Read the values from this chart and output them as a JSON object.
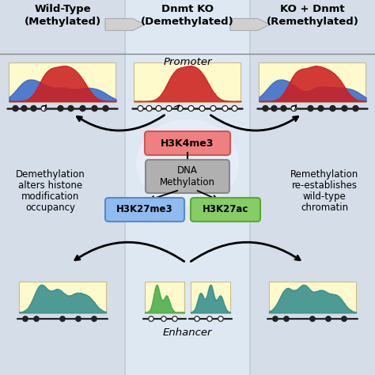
{
  "title_col1": "Wild-Type\n(Methylated)",
  "title_col2": "Dnmt KO\n(Demethylated)",
  "title_col3": "KO + Dnmt\n(Remethylated)",
  "promoter_label": "Promoter",
  "enhancer_label": "Enhancer",
  "left_text_lines": [
    "Demethylation",
    "alters histone",
    "modification",
    "occupancy"
  ],
  "right_text_lines": [
    "Remethylation",
    "re-establishes",
    "wild-type",
    "chromatin"
  ],
  "box1_label": "H3K4me3",
  "box2_label": "DNA\nMethylation",
  "box3_label": "H3K27me3",
  "box4_label": "H3K27ac",
  "box1_facecolor": "#f08080",
  "box1_edgecolor": "#cc5555",
  "box2_facecolor": "#b0b0b0",
  "box2_edgecolor": "#888888",
  "box3_facecolor": "#90bbee",
  "box3_edgecolor": "#5588cc",
  "box4_facecolor": "#88cc66",
  "box4_edgecolor": "#55aa33",
  "bg_left": "#d4dde8",
  "bg_center": "#dde8f2",
  "bg_right": "#d4dde8",
  "divider_color": "#c0ccd8",
  "header_line_color": "#888888",
  "chevron_color": "#d0d0d0",
  "chevron_edge": "#aaaaaa",
  "hist_bg": "#fffacc",
  "hist_edge": "#ccbb88",
  "dna_line_color": "#222222",
  "nuc_filled_color": "#222222",
  "nuc_open_color": "#222222",
  "red_color": "#cc2020",
  "blue_color": "#3366cc",
  "teal_color": "#2e8b8b",
  "green_color": "#44aa44",
  "arrow_color": "#111111",
  "fig_w": 4.74,
  "fig_h": 4.74,
  "dpi": 100
}
